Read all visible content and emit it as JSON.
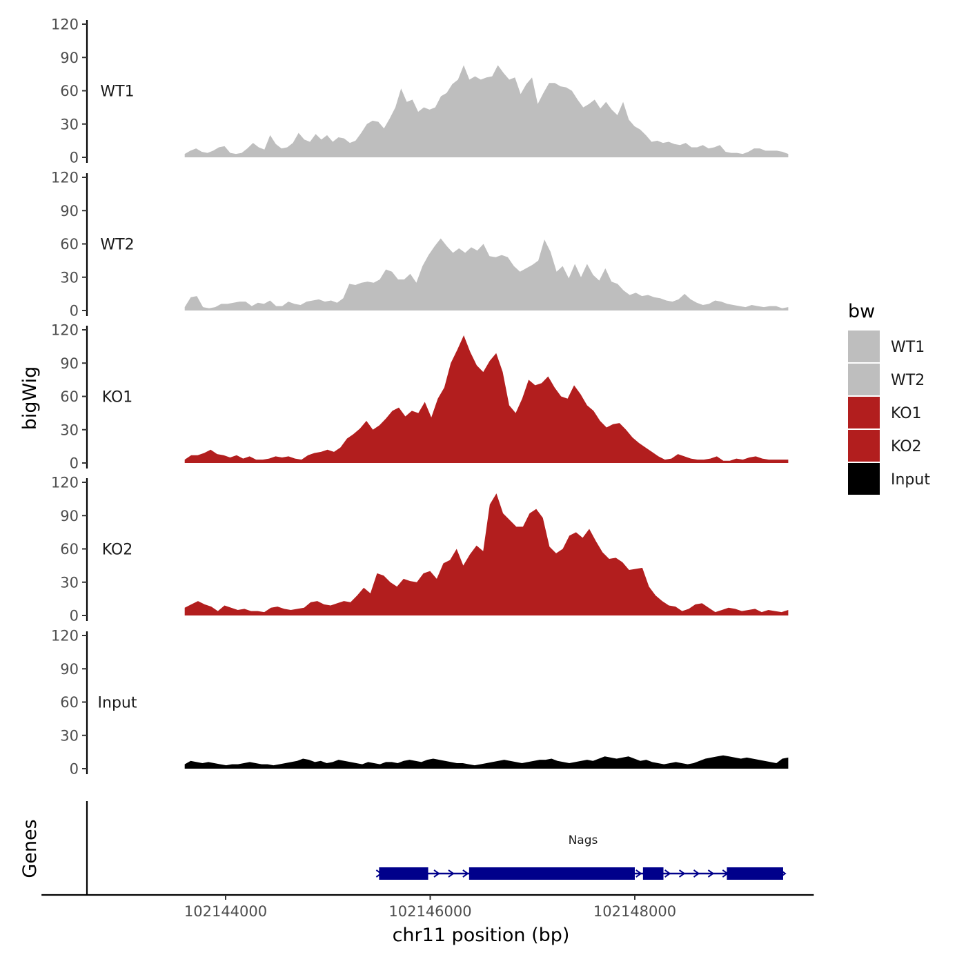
{
  "chart_data": {
    "type": "area",
    "xlabel": "chr11 position (bp)",
    "ylabel": "bigWig",
    "genes_label": "Genes",
    "xlim": [
      102142200,
      102149750
    ],
    "x_ticks": [
      102144000,
      102146000,
      102148000
    ],
    "x_tick_labels": [
      "102144000",
      "102146000",
      "102148000"
    ],
    "ylim": [
      0,
      120
    ],
    "y_ticks": [
      0,
      30,
      60,
      90,
      120
    ],
    "y_tick_labels": [
      "0",
      "30",
      "60",
      "90",
      "120"
    ],
    "track_start": 102143600,
    "track_end": 102149500,
    "legend": {
      "title": "bw",
      "entries": [
        {
          "label": "WT1",
          "color": "#BEBEBE"
        },
        {
          "label": "WT2",
          "color": "#BEBEBE"
        },
        {
          "label": "KO1",
          "color": "#B21E1E"
        },
        {
          "label": "KO2",
          "color": "#B21E1E"
        },
        {
          "label": "Input",
          "color": "#000000"
        }
      ]
    },
    "series": [
      {
        "name": "WT1",
        "color": "#BEBEBE",
        "values": [
          3,
          6,
          8,
          5,
          4,
          6,
          9,
          10,
          4,
          3,
          4,
          8,
          13,
          9,
          7,
          20,
          12,
          8,
          9,
          13,
          22,
          16,
          14,
          21,
          16,
          20,
          14,
          18,
          17,
          13,
          15,
          22,
          30,
          33,
          32,
          26,
          35,
          45,
          62,
          50,
          52,
          41,
          45,
          43,
          45,
          55,
          58,
          66,
          70,
          83,
          70,
          73,
          70,
          72,
          73,
          83,
          76,
          70,
          72,
          57,
          66,
          72,
          48,
          58,
          67,
          67,
          64,
          63,
          60,
          52,
          45,
          48,
          52,
          44,
          50,
          43,
          38,
          50,
          34,
          28,
          25,
          20,
          14,
          15,
          13,
          14,
          12,
          11,
          13,
          9,
          9,
          11,
          8,
          9,
          11,
          5,
          4,
          4,
          3,
          5,
          8,
          8,
          6,
          6,
          6,
          5,
          3
        ]
      },
      {
        "name": "WT2",
        "color": "#BEBEBE",
        "values": [
          3,
          12,
          13,
          3,
          2,
          3,
          6,
          6,
          7,
          8,
          8,
          4,
          7,
          6,
          9,
          4,
          4,
          8,
          6,
          5,
          8,
          9,
          10,
          8,
          9,
          7,
          11,
          24,
          23,
          25,
          26,
          25,
          28,
          37,
          35,
          28,
          28,
          33,
          25,
          40,
          50,
          58,
          65,
          58,
          52,
          56,
          52,
          57,
          54,
          60,
          49,
          48,
          50,
          48,
          40,
          35,
          38,
          41,
          45,
          64,
          53,
          35,
          40,
          29,
          42,
          30,
          42,
          32,
          27,
          38,
          26,
          24,
          18,
          14,
          16,
          13,
          14,
          12,
          11,
          9,
          8,
          10,
          15,
          10,
          7,
          5,
          6,
          9,
          8,
          6,
          5,
          4,
          3,
          5,
          4,
          3,
          4,
          4,
          2,
          3
        ]
      },
      {
        "name": "KO1",
        "color": "#B21E1E",
        "values": [
          3,
          7,
          7,
          9,
          12,
          8,
          7,
          5,
          7,
          4,
          6,
          3,
          3,
          4,
          6,
          5,
          6,
          4,
          3,
          7,
          9,
          10,
          12,
          10,
          14,
          22,
          26,
          31,
          38,
          30,
          34,
          40,
          47,
          50,
          42,
          47,
          45,
          55,
          41,
          58,
          68,
          90,
          102,
          115,
          100,
          88,
          82,
          92,
          99,
          82,
          52,
          45,
          58,
          75,
          70,
          72,
          78,
          68,
          60,
          58,
          70,
          62,
          52,
          47,
          38,
          32,
          35,
          36,
          30,
          23,
          18,
          14,
          10,
          6,
          3,
          4,
          8,
          6,
          4,
          3,
          3,
          4,
          6,
          2,
          2,
          4,
          3,
          5,
          6,
          4,
          3,
          3,
          3,
          3
        ]
      },
      {
        "name": "KO2",
        "color": "#B21E1E",
        "values": [
          7,
          10,
          13,
          10,
          8,
          4,
          9,
          7,
          5,
          6,
          4,
          4,
          3,
          7,
          8,
          6,
          5,
          6,
          7,
          12,
          13,
          10,
          9,
          11,
          13,
          12,
          18,
          25,
          20,
          38,
          36,
          30,
          26,
          33,
          31,
          30,
          38,
          40,
          33,
          47,
          50,
          60,
          45,
          55,
          63,
          58,
          100,
          110,
          92,
          86,
          80,
          80,
          92,
          96,
          88,
          62,
          56,
          60,
          72,
          75,
          70,
          78,
          67,
          57,
          51,
          52,
          48,
          41,
          42,
          43,
          26,
          18,
          13,
          9,
          8,
          4,
          6,
          10,
          11,
          7,
          3,
          5,
          7,
          6,
          4,
          5,
          6,
          3,
          5,
          4,
          3,
          5
        ]
      },
      {
        "name": "Input",
        "color": "#000000",
        "values": [
          4,
          7,
          6,
          5,
          6,
          5,
          4,
          3,
          4,
          4,
          5,
          6,
          5,
          4,
          4,
          3,
          4,
          5,
          6,
          7,
          9,
          8,
          6,
          7,
          5,
          6,
          8,
          7,
          6,
          5,
          4,
          6,
          5,
          4,
          6,
          6,
          5,
          7,
          8,
          7,
          6,
          8,
          9,
          8,
          7,
          6,
          5,
          5,
          4,
          3,
          4,
          5,
          6,
          7,
          8,
          7,
          6,
          5,
          6,
          7,
          8,
          8,
          9,
          7,
          6,
          5,
          6,
          7,
          8,
          7,
          9,
          11,
          10,
          9,
          10,
          11,
          9,
          7,
          8,
          6,
          5,
          4,
          5,
          6,
          5,
          4,
          5,
          7,
          9,
          10,
          11,
          12,
          11,
          10,
          9,
          10,
          9,
          8,
          7,
          6,
          5,
          9,
          10
        ]
      }
    ],
    "genes": [
      {
        "name": "Nags",
        "strand": "+",
        "start": 102145500,
        "end": 102149450,
        "exons": [
          [
            102145500,
            102145980
          ],
          [
            102146380,
            102148000
          ],
          [
            102148080,
            102148280
          ],
          [
            102148900,
            102149450
          ]
        ]
      }
    ]
  }
}
